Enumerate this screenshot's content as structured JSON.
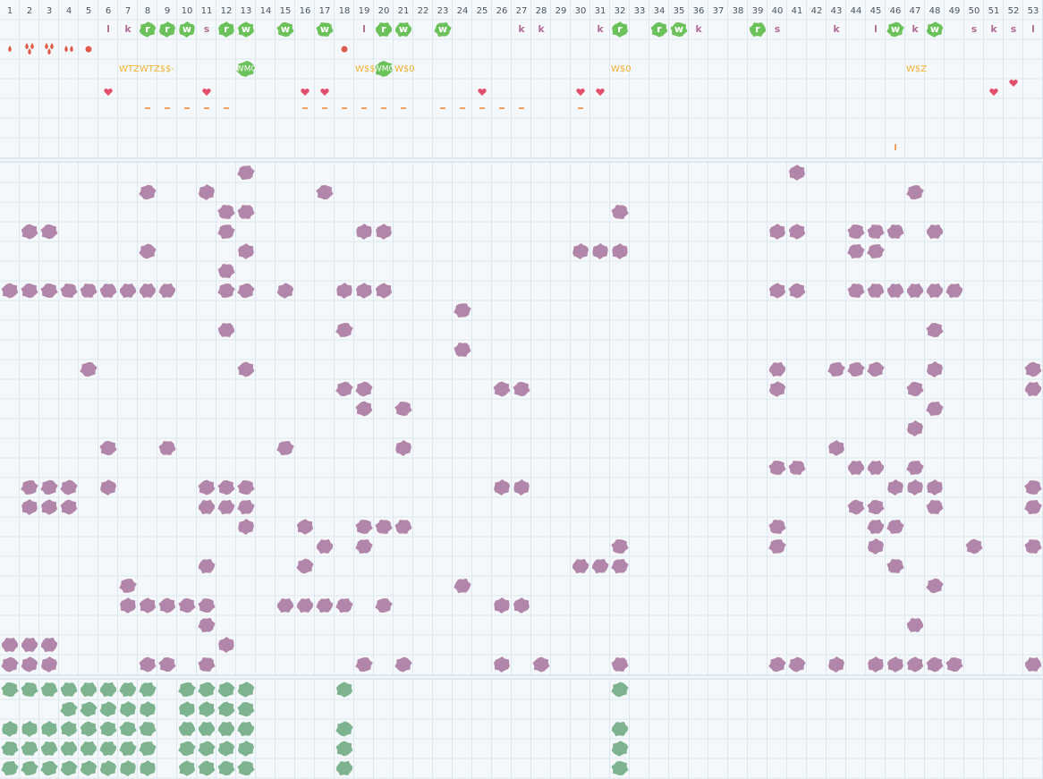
{
  "header": {
    "columns": [
      1,
      2,
      3,
      4,
      5,
      6,
      7,
      8,
      9,
      10,
      11,
      12,
      13,
      14,
      15,
      16,
      17,
      18,
      19,
      20,
      21,
      22,
      23,
      24,
      25,
      26,
      27,
      28,
      29,
      30,
      31,
      32,
      33,
      34,
      35,
      36,
      37,
      38,
      39,
      40,
      41,
      42,
      43,
      44,
      45,
      46,
      47,
      48,
      49,
      50,
      51,
      52,
      53
    ]
  },
  "rows": {
    "letters": [
      null,
      null,
      null,
      null,
      null,
      "l",
      "k",
      "r",
      "r",
      "w",
      "s",
      "r",
      "w",
      null,
      "w",
      null,
      "w",
      null,
      "l",
      "r",
      "w",
      null,
      "w",
      null,
      null,
      null,
      "k",
      "k",
      null,
      null,
      "k",
      "r",
      null,
      "r",
      "w",
      "k",
      null,
      null,
      "r",
      "s",
      null,
      null,
      "k",
      null,
      "l",
      "w",
      "k",
      "w",
      null,
      "s",
      "k",
      "s",
      "l"
    ],
    "labels": [
      null,
      null,
      null,
      null,
      null,
      null,
      "WTZWTZ$$-",
      null,
      null,
      null,
      null,
      null,
      "WM0",
      null,
      null,
      null,
      null,
      null,
      "W$$",
      "WM0",
      "W$0",
      null,
      null,
      null,
      null,
      null,
      null,
      null,
      null,
      null,
      null,
      "W$0",
      null,
      null,
      null,
      null,
      null,
      null,
      null,
      null,
      null,
      null,
      null,
      null,
      null,
      null,
      "W$Z",
      null,
      null,
      null,
      null,
      null,
      null
    ]
  }
}
